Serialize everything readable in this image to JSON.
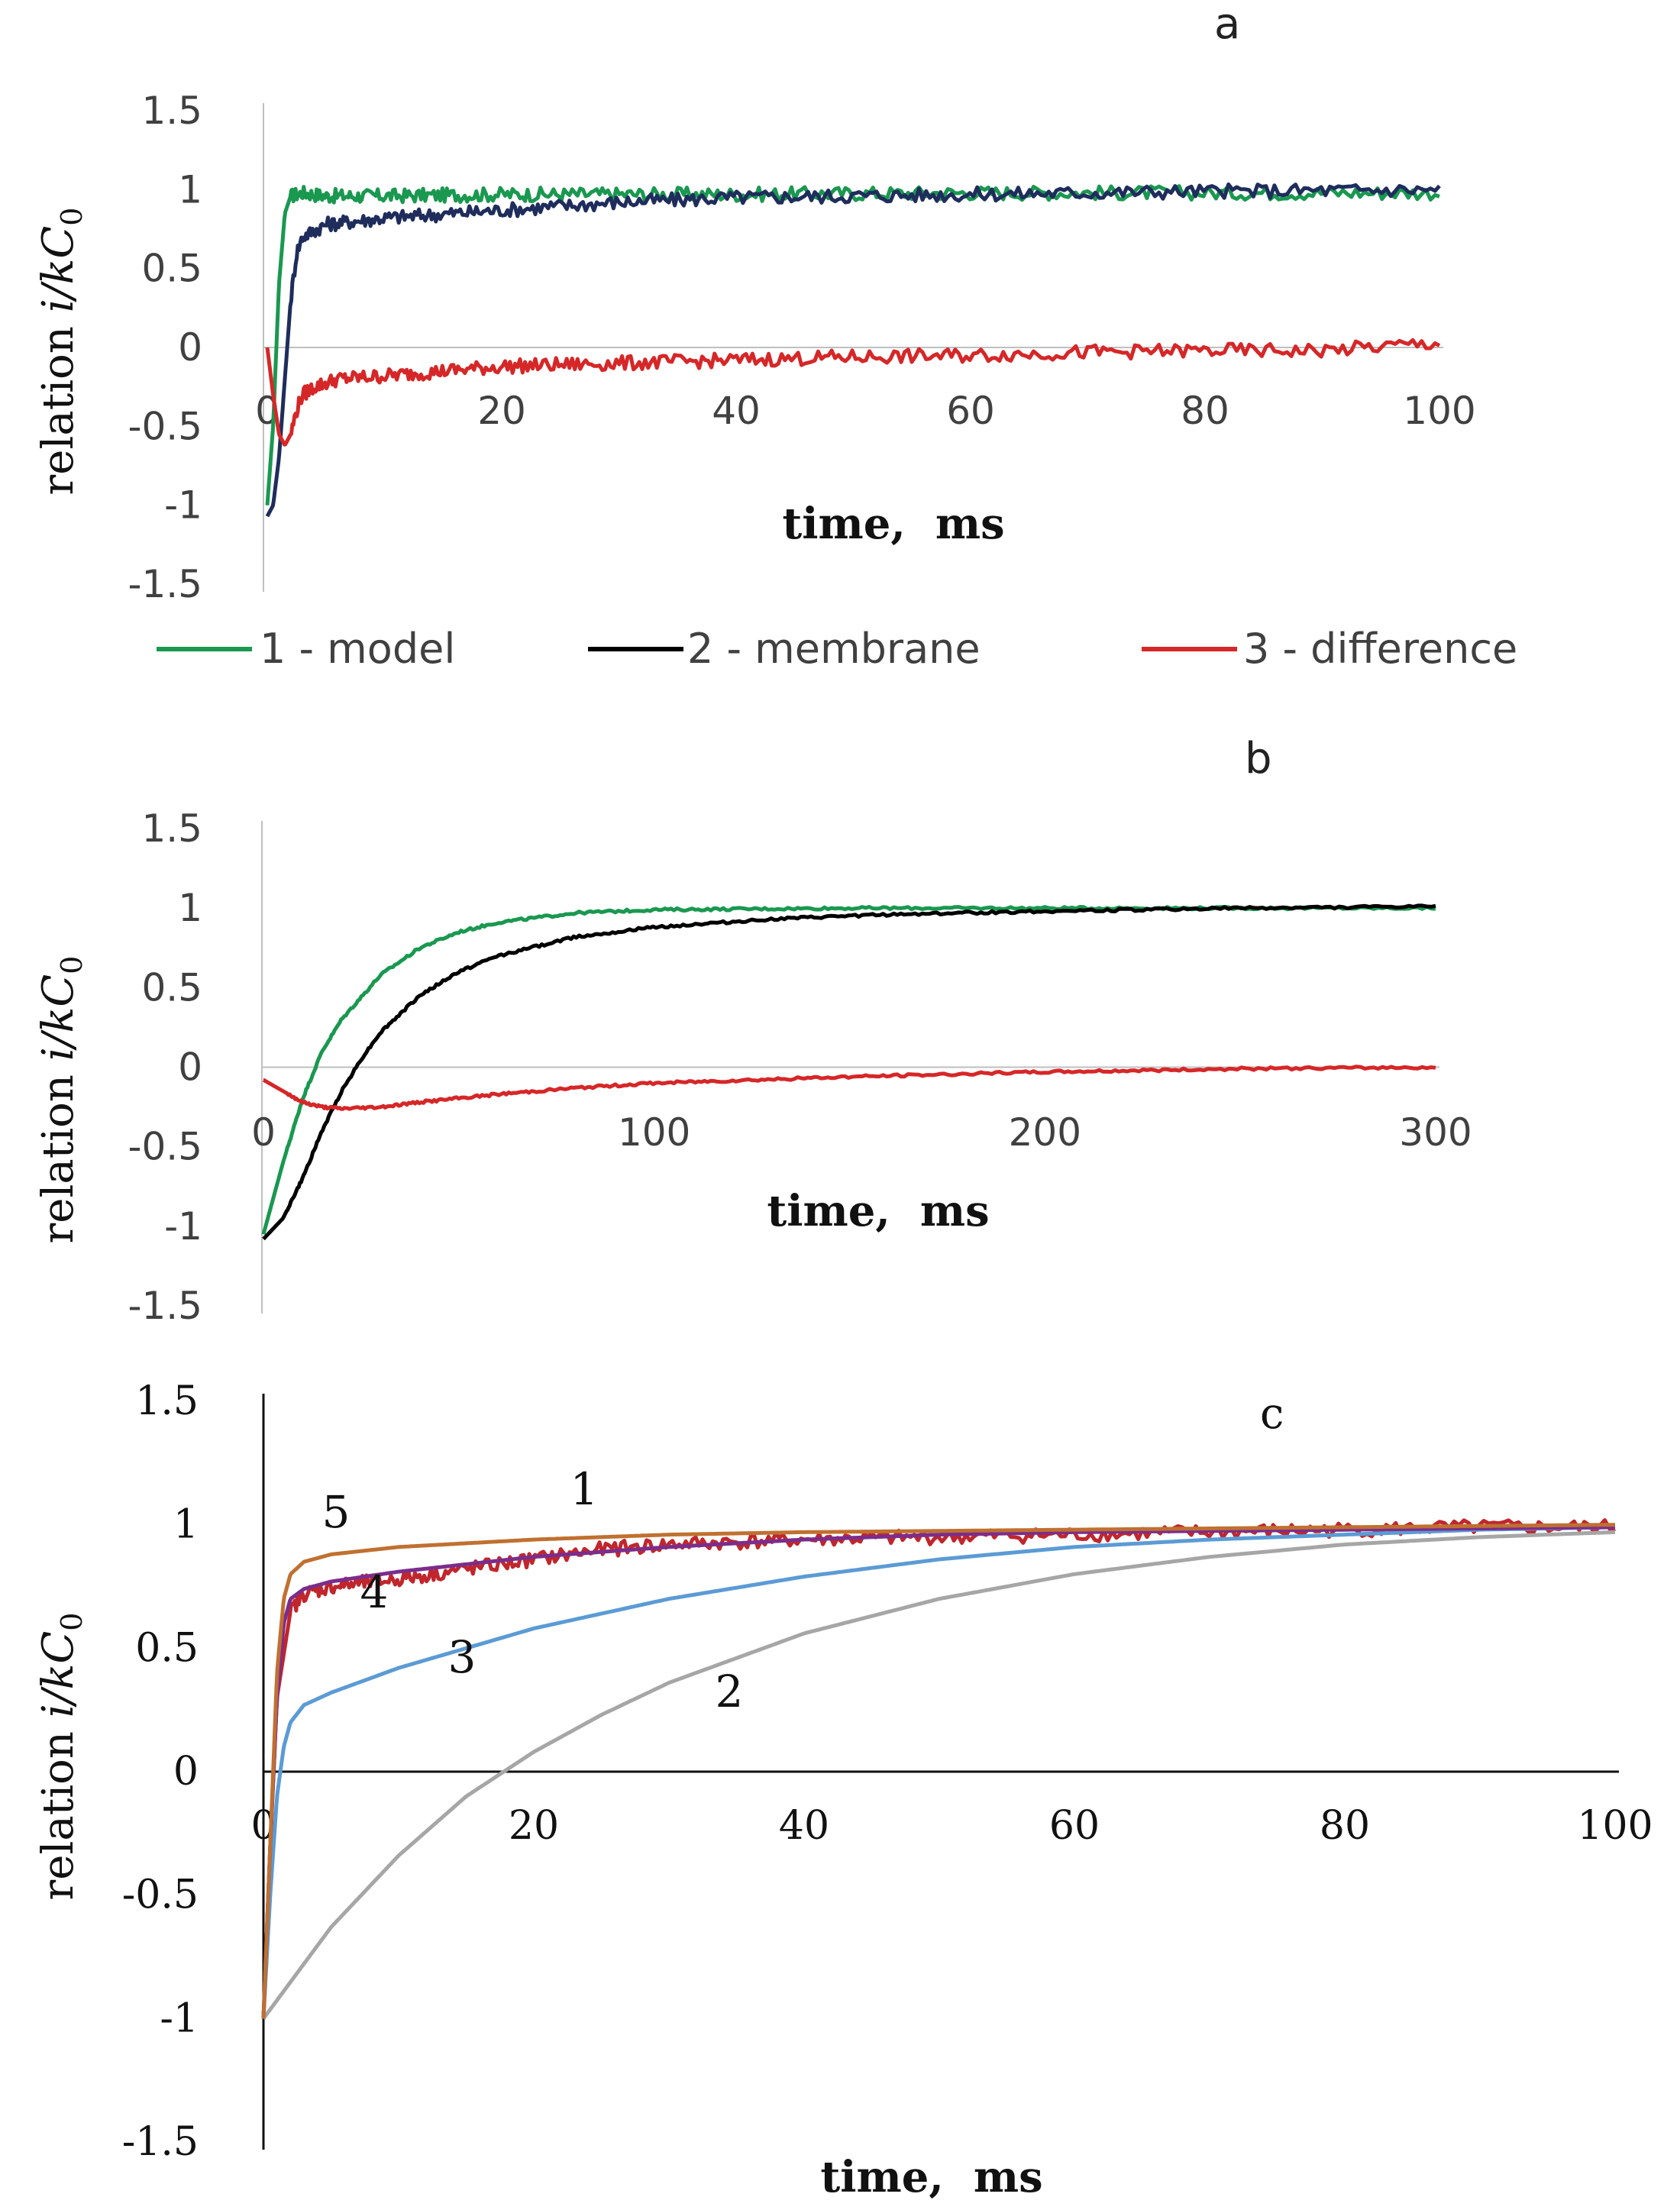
{
  "chart_data": [
    {
      "panel": "a",
      "type": "line",
      "title": "a",
      "xlabel": "time,  ms",
      "ylabel": "relation i/kC0",
      "ylabel_parts": {
        "text": "relation ",
        "italic": "i/kC",
        "sub": "0"
      },
      "xlim": [
        0,
        100
      ],
      "ylim": [
        -1.5,
        1.5
      ],
      "xticks": [
        "0",
        "20",
        "40",
        "60",
        "80",
        "100"
      ],
      "yticks": [
        "1.5",
        "1",
        "0.5",
        "0",
        "-0.5",
        "-1",
        "-1.5"
      ],
      "legend_position": "bottom",
      "series": [
        {
          "name": "1 - model",
          "color": "#1a9850",
          "x": [
            0,
            0.5,
            1,
            1.5,
            2,
            3,
            5,
            10,
            20,
            40,
            60,
            80,
            100
          ],
          "y": [
            -1.0,
            -0.5,
            0.4,
            0.85,
            0.96,
            0.98,
            0.96,
            0.96,
            0.97,
            0.97,
            0.98,
            0.98,
            0.98
          ]
        },
        {
          "name": "2 - membrane",
          "color": "#1f2d5c",
          "legend_color": "#000000",
          "x": [
            0,
            0.5,
            1,
            1.5,
            2,
            2.5,
            3,
            5,
            10,
            20,
            30,
            40,
            50,
            60,
            80,
            100
          ],
          "y": [
            -1.07,
            -1.0,
            -0.7,
            -0.2,
            0.3,
            0.6,
            0.7,
            0.78,
            0.82,
            0.87,
            0.92,
            0.95,
            0.96,
            0.97,
            0.99,
            1.0
          ]
        },
        {
          "name": "3 - difference",
          "color": "#d62728",
          "x": [
            0,
            0.5,
            1,
            1.5,
            2,
            2.5,
            3,
            4,
            6,
            10,
            15,
            20,
            30,
            40,
            50,
            60,
            70,
            80,
            90,
            100
          ],
          "y": [
            0.0,
            -0.3,
            -0.55,
            -0.62,
            -0.55,
            -0.4,
            -0.3,
            -0.25,
            -0.2,
            -0.18,
            -0.15,
            -0.12,
            -0.1,
            -0.08,
            -0.06,
            -0.05,
            -0.03,
            -0.02,
            -0.02,
            0.03
          ]
        }
      ]
    },
    {
      "panel": "b",
      "type": "line",
      "title": "b",
      "xlabel": "time,  ms",
      "ylabel": "relation i/kC0",
      "ylabel_parts": {
        "text": "relation ",
        "italic": "i/kC",
        "sub": "0"
      },
      "xlim": [
        0,
        300
      ],
      "ylim": [
        -1.5,
        1.5
      ],
      "xticks": [
        "0",
        "100",
        "200",
        "300"
      ],
      "yticks": [
        "1.5",
        "1",
        "0.5",
        "0",
        "-0.5",
        "-1",
        "-1.5"
      ],
      "series": [
        {
          "name": "1 - model",
          "color": "#1a9850",
          "x": [
            0,
            5,
            10,
            15,
            20,
            30,
            40,
            50,
            60,
            80,
            100,
            150,
            200,
            250,
            300
          ],
          "y": [
            -1.05,
            -0.6,
            -0.2,
            0.1,
            0.3,
            0.58,
            0.75,
            0.85,
            0.91,
            0.97,
            0.99,
            1.0,
            1.0,
            1.0,
            1.0
          ]
        },
        {
          "name": "2 - membrane",
          "color": "#000000",
          "x": [
            0,
            5,
            10,
            15,
            20,
            25,
            30,
            40,
            50,
            60,
            80,
            100,
            130,
            160,
            200,
            250,
            300
          ],
          "y": [
            -1.08,
            -0.95,
            -0.7,
            -0.4,
            -0.15,
            0.05,
            0.22,
            0.45,
            0.6,
            0.7,
            0.82,
            0.88,
            0.93,
            0.96,
            0.98,
            1.0,
            1.01
          ]
        },
        {
          "name": "3 - difference",
          "color": "#d62728",
          "x": [
            0,
            5,
            10,
            15,
            20,
            30,
            40,
            60,
            80,
            100,
            150,
            200,
            250,
            300
          ],
          "y": [
            -0.08,
            -0.15,
            -0.22,
            -0.25,
            -0.26,
            -0.25,
            -0.22,
            -0.17,
            -0.13,
            -0.1,
            -0.06,
            -0.03,
            -0.01,
            0.0
          ]
        }
      ]
    },
    {
      "panel": "c",
      "type": "line",
      "title": "c",
      "xlabel": "time,  ms",
      "ylabel": "relation i/kC0",
      "ylabel_parts": {
        "text": "relation ",
        "italic": "i/kC",
        "sub": "0"
      },
      "xlim": [
        0,
        100
      ],
      "ylim": [
        -1.5,
        1.5
      ],
      "xticks": [
        "0",
        "20",
        "40",
        "60",
        "80",
        "100"
      ],
      "yticks": [
        "1.5",
        "1",
        "0.5",
        "0",
        "-0.5",
        "-1",
        "-1.5"
      ],
      "series": [
        {
          "name": "1",
          "color": "#c0262c",
          "x": [
            0,
            0.5,
            1,
            2,
            3,
            5,
            10,
            15,
            20,
            25,
            30,
            40,
            50,
            60,
            70,
            80,
            90,
            100
          ],
          "y": [
            -1.0,
            -0.3,
            0.3,
            0.65,
            0.72,
            0.75,
            0.78,
            0.82,
            0.86,
            0.9,
            0.92,
            0.94,
            0.95,
            0.96,
            0.97,
            0.98,
            0.99,
            0.99
          ]
        },
        {
          "name": "2",
          "color": "#a6a6a6",
          "x": [
            0,
            5,
            10,
            15,
            20,
            25,
            30,
            40,
            50,
            60,
            70,
            80,
            90,
            100
          ],
          "y": [
            -1.0,
            -0.63,
            -0.34,
            -0.1,
            0.08,
            0.23,
            0.36,
            0.56,
            0.7,
            0.8,
            0.87,
            0.92,
            0.95,
            0.97
          ]
        },
        {
          "name": "3",
          "color": "#5b9bd5",
          "x": [
            0,
            0.5,
            1,
            1.5,
            2,
            3,
            5,
            10,
            20,
            30,
            40,
            50,
            60,
            70,
            80,
            90,
            100
          ],
          "y": [
            -1.0,
            -0.5,
            -0.1,
            0.1,
            0.2,
            0.27,
            0.32,
            0.42,
            0.58,
            0.7,
            0.79,
            0.86,
            0.91,
            0.94,
            0.96,
            0.98,
            0.99
          ]
        },
        {
          "name": "4",
          "color": "#7b2d8b",
          "x": [
            0,
            0.5,
            1,
            1.5,
            2,
            3,
            5,
            10,
            20,
            30,
            40,
            50,
            60,
            80,
            100
          ],
          "y": [
            -1.0,
            -0.3,
            0.3,
            0.6,
            0.7,
            0.74,
            0.77,
            0.81,
            0.87,
            0.91,
            0.94,
            0.96,
            0.97,
            0.98,
            0.99
          ]
        },
        {
          "name": "5",
          "color": "#c07030",
          "x": [
            0,
            0.5,
            1,
            1.5,
            2,
            3,
            5,
            10,
            20,
            30,
            40,
            60,
            80,
            100
          ],
          "y": [
            -1.0,
            -0.3,
            0.4,
            0.7,
            0.8,
            0.85,
            0.88,
            0.91,
            0.94,
            0.96,
            0.97,
            0.98,
            0.99,
            1.0
          ]
        }
      ],
      "curve_labels": [
        "1",
        "2",
        "3",
        "4",
        "5"
      ]
    }
  ]
}
